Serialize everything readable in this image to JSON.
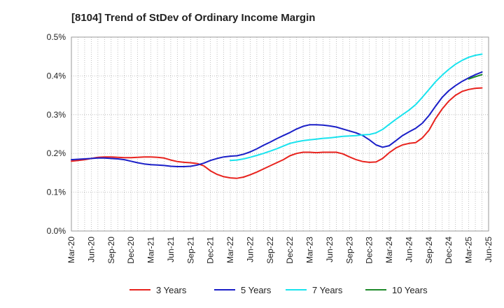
{
  "chart_data": {
    "type": "line",
    "title": "[8104]  Trend of StDev of Ordinary Income Margin",
    "xlabel": "",
    "ylabel": "",
    "x_start": "2020-03",
    "x_ticks": [
      "Mar-20",
      "Jun-20",
      "Sep-20",
      "Dec-20",
      "Mar-21",
      "Jun-21",
      "Sep-21",
      "Dec-21",
      "Mar-22",
      "Jun-22",
      "Sep-22",
      "Dec-22",
      "Mar-23",
      "Jun-23",
      "Sep-23",
      "Dec-23",
      "Mar-24",
      "Jun-24",
      "Sep-24",
      "Dec-24",
      "Mar-25",
      "Jun-25"
    ],
    "y_ticks": [
      "0.0%",
      "0.1%",
      "0.2%",
      "0.3%",
      "0.4%",
      "0.5%"
    ],
    "ylim": [
      0,
      0.5
    ],
    "grid": true,
    "legend_position": "bottom",
    "series": [
      {
        "name": "3 Years",
        "color": "#e8231e",
        "points": [
          [
            "2020-03",
            0.18
          ],
          [
            "2020-04",
            0.182
          ],
          [
            "2020-05",
            0.184
          ],
          [
            "2020-06",
            0.187
          ],
          [
            "2020-07",
            0.19
          ],
          [
            "2020-08",
            0.191
          ],
          [
            "2020-09",
            0.191
          ],
          [
            "2020-10",
            0.19
          ],
          [
            "2020-11",
            0.189
          ],
          [
            "2020-12",
            0.189
          ],
          [
            "2021-01",
            0.19
          ],
          [
            "2021-02",
            0.191
          ],
          [
            "2021-03",
            0.191
          ],
          [
            "2021-04",
            0.19
          ],
          [
            "2021-05",
            0.188
          ],
          [
            "2021-06",
            0.183
          ],
          [
            "2021-07",
            0.179
          ],
          [
            "2021-08",
            0.177
          ],
          [
            "2021-09",
            0.176
          ],
          [
            "2021-10",
            0.174
          ],
          [
            "2021-11",
            0.168
          ],
          [
            "2021-12",
            0.155
          ],
          [
            "2022-01",
            0.146
          ],
          [
            "2022-02",
            0.14
          ],
          [
            "2022-03",
            0.137
          ],
          [
            "2022-04",
            0.136
          ],
          [
            "2022-05",
            0.139
          ],
          [
            "2022-06",
            0.145
          ],
          [
            "2022-07",
            0.152
          ],
          [
            "2022-08",
            0.16
          ],
          [
            "2022-09",
            0.168
          ],
          [
            "2022-10",
            0.176
          ],
          [
            "2022-11",
            0.184
          ],
          [
            "2022-12",
            0.194
          ],
          [
            "2023-01",
            0.2
          ],
          [
            "2023-02",
            0.203
          ],
          [
            "2023-03",
            0.203
          ],
          [
            "2023-04",
            0.202
          ],
          [
            "2023-05",
            0.203
          ],
          [
            "2023-06",
            0.203
          ],
          [
            "2023-07",
            0.203
          ],
          [
            "2023-08",
            0.199
          ],
          [
            "2023-09",
            0.191
          ],
          [
            "2023-10",
            0.184
          ],
          [
            "2023-11",
            0.179
          ],
          [
            "2023-12",
            0.177
          ],
          [
            "2024-01",
            0.178
          ],
          [
            "2024-02",
            0.187
          ],
          [
            "2024-03",
            0.202
          ],
          [
            "2024-04",
            0.214
          ],
          [
            "2024-05",
            0.222
          ],
          [
            "2024-06",
            0.226
          ],
          [
            "2024-07",
            0.228
          ],
          [
            "2024-08",
            0.24
          ],
          [
            "2024-09",
            0.26
          ],
          [
            "2024-10",
            0.29
          ],
          [
            "2024-11",
            0.315
          ],
          [
            "2024-12",
            0.335
          ],
          [
            "2025-01",
            0.35
          ],
          [
            "2025-02",
            0.36
          ],
          [
            "2025-03",
            0.365
          ],
          [
            "2025-04",
            0.368
          ],
          [
            "2025-05",
            0.369
          ]
        ]
      },
      {
        "name": "5 Years",
        "color": "#1a1fc8",
        "points": [
          [
            "2020-03",
            0.184
          ],
          [
            "2020-04",
            0.185
          ],
          [
            "2020-05",
            0.186
          ],
          [
            "2020-06",
            0.187
          ],
          [
            "2020-07",
            0.188
          ],
          [
            "2020-08",
            0.188
          ],
          [
            "2020-09",
            0.187
          ],
          [
            "2020-10",
            0.186
          ],
          [
            "2020-11",
            0.184
          ],
          [
            "2020-12",
            0.18
          ],
          [
            "2021-01",
            0.176
          ],
          [
            "2021-02",
            0.173
          ],
          [
            "2021-03",
            0.171
          ],
          [
            "2021-04",
            0.17
          ],
          [
            "2021-05",
            0.169
          ],
          [
            "2021-06",
            0.167
          ],
          [
            "2021-07",
            0.166
          ],
          [
            "2021-08",
            0.166
          ],
          [
            "2021-09",
            0.167
          ],
          [
            "2021-10",
            0.17
          ],
          [
            "2021-11",
            0.175
          ],
          [
            "2021-12",
            0.182
          ],
          [
            "2022-01",
            0.187
          ],
          [
            "2022-02",
            0.191
          ],
          [
            "2022-03",
            0.193
          ],
          [
            "2022-04",
            0.194
          ],
          [
            "2022-05",
            0.198
          ],
          [
            "2022-06",
            0.204
          ],
          [
            "2022-07",
            0.212
          ],
          [
            "2022-08",
            0.221
          ],
          [
            "2022-09",
            0.229
          ],
          [
            "2022-10",
            0.238
          ],
          [
            "2022-11",
            0.246
          ],
          [
            "2022-12",
            0.254
          ],
          [
            "2023-01",
            0.263
          ],
          [
            "2023-02",
            0.27
          ],
          [
            "2023-03",
            0.274
          ],
          [
            "2023-04",
            0.274
          ],
          [
            "2023-05",
            0.273
          ],
          [
            "2023-06",
            0.271
          ],
          [
            "2023-07",
            0.268
          ],
          [
            "2023-08",
            0.263
          ],
          [
            "2023-09",
            0.258
          ],
          [
            "2023-10",
            0.253
          ],
          [
            "2023-11",
            0.246
          ],
          [
            "2023-12",
            0.235
          ],
          [
            "2024-01",
            0.222
          ],
          [
            "2024-02",
            0.216
          ],
          [
            "2024-03",
            0.22
          ],
          [
            "2024-04",
            0.233
          ],
          [
            "2024-05",
            0.246
          ],
          [
            "2024-06",
            0.256
          ],
          [
            "2024-07",
            0.265
          ],
          [
            "2024-08",
            0.278
          ],
          [
            "2024-09",
            0.298
          ],
          [
            "2024-10",
            0.322
          ],
          [
            "2024-11",
            0.345
          ],
          [
            "2024-12",
            0.362
          ],
          [
            "2025-01",
            0.375
          ],
          [
            "2025-02",
            0.386
          ],
          [
            "2025-03",
            0.395
          ],
          [
            "2025-04",
            0.403
          ],
          [
            "2025-05",
            0.41
          ]
        ]
      },
      {
        "name": "7 Years",
        "color": "#19e3ee",
        "points": [
          [
            "2022-03",
            0.182
          ],
          [
            "2022-04",
            0.183
          ],
          [
            "2022-05",
            0.186
          ],
          [
            "2022-06",
            0.19
          ],
          [
            "2022-07",
            0.195
          ],
          [
            "2022-08",
            0.2
          ],
          [
            "2022-09",
            0.206
          ],
          [
            "2022-10",
            0.212
          ],
          [
            "2022-11",
            0.219
          ],
          [
            "2022-12",
            0.226
          ],
          [
            "2023-01",
            0.23
          ],
          [
            "2023-02",
            0.233
          ],
          [
            "2023-03",
            0.235
          ],
          [
            "2023-04",
            0.237
          ],
          [
            "2023-05",
            0.239
          ],
          [
            "2023-06",
            0.24
          ],
          [
            "2023-07",
            0.242
          ],
          [
            "2023-08",
            0.244
          ],
          [
            "2023-09",
            0.245
          ],
          [
            "2023-10",
            0.246
          ],
          [
            "2023-11",
            0.248
          ],
          [
            "2023-12",
            0.249
          ],
          [
            "2024-01",
            0.253
          ],
          [
            "2024-02",
            0.262
          ],
          [
            "2024-03",
            0.275
          ],
          [
            "2024-04",
            0.288
          ],
          [
            "2024-05",
            0.3
          ],
          [
            "2024-06",
            0.312
          ],
          [
            "2024-07",
            0.326
          ],
          [
            "2024-08",
            0.345
          ],
          [
            "2024-09",
            0.365
          ],
          [
            "2024-10",
            0.385
          ],
          [
            "2024-11",
            0.402
          ],
          [
            "2024-12",
            0.417
          ],
          [
            "2025-01",
            0.43
          ],
          [
            "2025-02",
            0.44
          ],
          [
            "2025-03",
            0.448
          ],
          [
            "2025-04",
            0.453
          ],
          [
            "2025-05",
            0.456
          ]
        ]
      },
      {
        "name": "10 Years",
        "color": "#1f8a2a",
        "points": [
          [
            "2025-03",
            0.392
          ],
          [
            "2025-04",
            0.398
          ],
          [
            "2025-05",
            0.403
          ]
        ]
      }
    ]
  }
}
